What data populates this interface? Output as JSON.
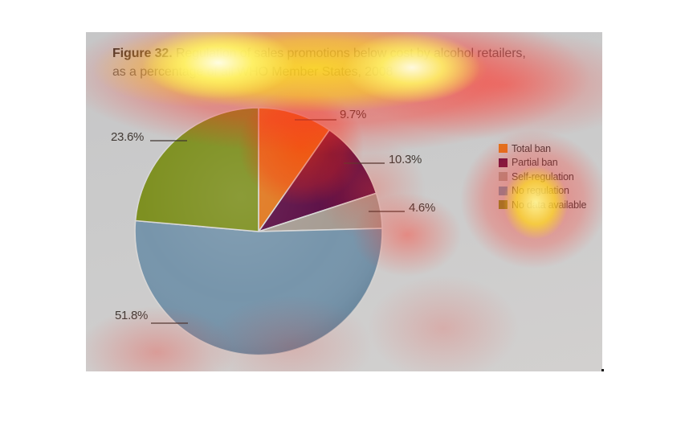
{
  "figure": {
    "line1_label": "Figure 32.",
    "line1_text": "Regulation of sales promotions below cost by alcohol retailers,",
    "line2_text": "as a percentage of all WHO Member States, 2008"
  },
  "chart_data": {
    "type": "pie",
    "title": "Figure 32. Regulation of sales promotions below cost by alcohol retailers, as a percentage of all WHO Member States, 2008",
    "categories": [
      "Total ban",
      "Partial ban",
      "Self-regulation",
      "No regulation",
      "No data available"
    ],
    "values": [
      9.7,
      10.3,
      4.6,
      51.8,
      23.6
    ],
    "unit": "%",
    "colors": [
      "#e0761c",
      "#5b0e45",
      "#a69c93",
      "#7795ab",
      "#7e9021"
    ],
    "start_angle_deg": 0,
    "direction": "clockwise",
    "legend_position": "right",
    "slice_labels": [
      "9.7%",
      "10.3%",
      "4.6%",
      "51.8%",
      "23.6%"
    ]
  },
  "labels": {
    "total_ban": "9.7%",
    "partial_ban": "10.3%",
    "self_regulation": "4.6%",
    "no_regulation": "51.8%",
    "no_data": "23.6%"
  },
  "legend": {
    "items": [
      {
        "label": "Total ban",
        "color": "#e0761c"
      },
      {
        "label": "Partial ban",
        "color": "#5b0e45"
      },
      {
        "label": "Self-regulation",
        "color": "#a69c93"
      },
      {
        "label": "No regulation",
        "color": "#7795ab"
      },
      {
        "label": "No data available",
        "color": "#7e9021"
      }
    ]
  },
  "overlay": {
    "kind": "attention-heatmap",
    "hot_color": "#fff6a0",
    "warm_color": "#ff3228"
  }
}
